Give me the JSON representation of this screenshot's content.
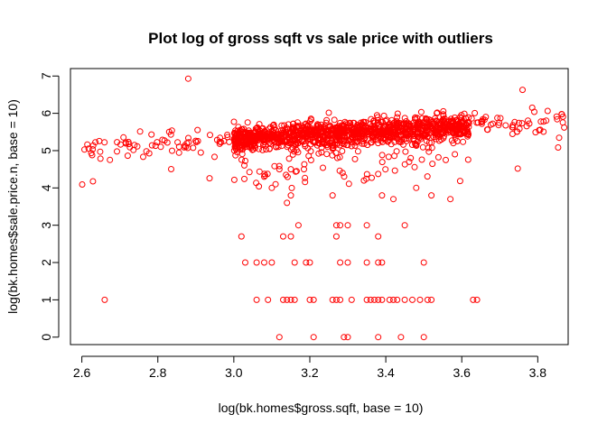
{
  "chart_data": {
    "type": "scatter",
    "title": "Plot log of gross sqft vs sale price with outliers",
    "xlabel": "log(bk.homes$gross.sqft, base = 10)",
    "ylabel": "log(bk.homes$sale.price.n, base = 10)",
    "xlim": [
      2.57,
      3.88
    ],
    "ylim": [
      -0.2,
      7.2
    ],
    "xticks": [
      "2.6",
      "2.8",
      "3.0",
      "3.2",
      "3.4",
      "3.6",
      "3.8"
    ],
    "yticks": [
      "0",
      "1",
      "2",
      "3",
      "4",
      "5",
      "6",
      "7"
    ],
    "point_color": "#ff0000",
    "marker": "open-circle",
    "grid": false,
    "legend": "none",
    "outliers": {
      "x": [
        2.66,
        3.12,
        3.21,
        3.29,
        3.3,
        3.38,
        3.44,
        3.5,
        3.06,
        3.09,
        3.13,
        3.14,
        3.15,
        3.16,
        3.2,
        3.21,
        3.26,
        3.27,
        3.28,
        3.31,
        3.35,
        3.36,
        3.37,
        3.38,
        3.39,
        3.41,
        3.42,
        3.43,
        3.45,
        3.47,
        3.49,
        3.51,
        3.52,
        3.63,
        3.64,
        3.03,
        3.06,
        3.08,
        3.1,
        3.16,
        3.19,
        3.2,
        3.28,
        3.3,
        3.35,
        3.38,
        3.39,
        3.5,
        3.02,
        3.13,
        3.15,
        3.27,
        3.38,
        3.27,
        3.28,
        3.3,
        3.35,
        3.45,
        3.17,
        3.14,
        3.15,
        3.26,
        3.39,
        3.42,
        3.48,
        3.52,
        3.57,
        3.1,
        3.11,
        3.12,
        3.08,
        3.15
      ],
      "y": [
        1.0,
        0.0,
        0.0,
        0.0,
        0.0,
        0.0,
        0.0,
        0.0,
        1.0,
        1.0,
        1.0,
        1.0,
        1.0,
        1.0,
        1.0,
        1.0,
        1.0,
        1.0,
        1.0,
        1.0,
        1.0,
        1.0,
        1.0,
        1.0,
        1.0,
        1.0,
        1.0,
        1.0,
        1.0,
        1.0,
        1.0,
        1.0,
        1.0,
        1.0,
        1.0,
        2.0,
        2.0,
        2.0,
        2.0,
        2.0,
        2.0,
        2.0,
        2.0,
        2.0,
        2.0,
        2.0,
        2.0,
        2.0,
        2.7,
        2.7,
        2.7,
        2.7,
        2.7,
        3.0,
        3.0,
        3.0,
        3.0,
        3.0,
        3.0,
        3.6,
        3.8,
        3.8,
        3.8,
        3.7,
        4.0,
        3.8,
        3.7,
        4.0,
        4.1,
        4.5,
        4.3,
        4.5
      ]
    }
  }
}
